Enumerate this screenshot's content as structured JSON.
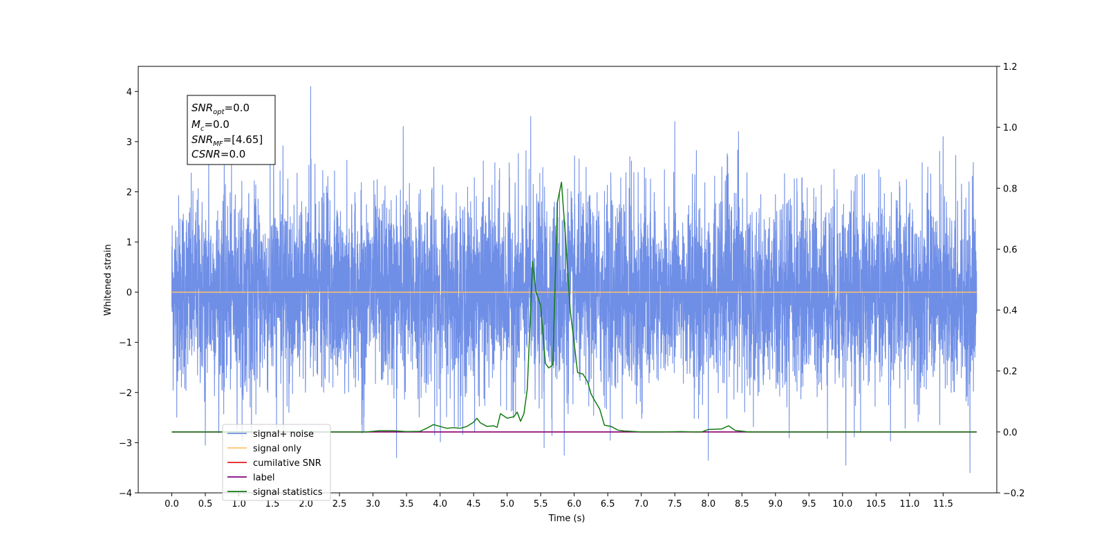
{
  "chart_data": {
    "type": "line",
    "xlabel": "Time (s)",
    "ylabel": "Whitened strain",
    "xlim": [
      -0.5,
      12.3
    ],
    "ylim": [
      -4,
      4.5
    ],
    "y2lim": [
      -0.2,
      1.2
    ],
    "x_ticks": [
      "0.0",
      "0.5",
      "1.0",
      "1.5",
      "2.0",
      "2.5",
      "3.0",
      "3.5",
      "4.0",
      "4.5",
      "5.0",
      "5.5",
      "6.0",
      "6.5",
      "7.0",
      "7.5",
      "8.0",
      "8.5",
      "9.0",
      "9.5",
      "10.0",
      "10.5",
      "11.0",
      "11.5"
    ],
    "y_ticks": [
      "−4",
      "−3",
      "−2",
      "−1",
      "0",
      "1",
      "2",
      "3",
      "4"
    ],
    "y2_ticks": [
      "−0.2",
      "0.0",
      "0.2",
      "0.4",
      "0.6",
      "0.8",
      "1.0",
      "1.2"
    ],
    "grid": false,
    "legend_position": "lower-left",
    "annotation": {
      "lines": [
        {
          "base": "SNR",
          "sub": "opt",
          "value": "=0.0"
        },
        {
          "base": "M",
          "sub": "c",
          "value": "=0.0"
        },
        {
          "base": "SNR",
          "sub": "MF",
          "value": "=[4.65]"
        },
        {
          "base": "CSNR",
          "sub": "",
          "value": "=0.0"
        }
      ]
    },
    "series": [
      {
        "name": "signal+ noise",
        "color": "#6f8ee6",
        "axis": "left",
        "style": "noise",
        "x_range": [
          0.0,
          12.0
        ],
        "mean": 0.0,
        "std": 0.95,
        "samples": 6000,
        "peaks": [
          [
            0.55,
            2.6
          ],
          [
            2.07,
            4.1
          ],
          [
            3.45,
            3.3
          ],
          [
            5.35,
            3.5
          ],
          [
            5.85,
            3.65
          ],
          [
            7.5,
            3.4
          ],
          [
            8.45,
            3.2
          ],
          [
            11.5,
            3.1
          ],
          [
            3.35,
            -3.3
          ],
          [
            5.55,
            -3.1
          ],
          [
            5.85,
            -3.25
          ],
          [
            8.0,
            -3.35
          ],
          [
            10.05,
            -3.45
          ],
          [
            11.9,
            -3.6
          ],
          [
            0.5,
            -3.05
          ]
        ]
      },
      {
        "name": "signal only",
        "color": "#ffc36b",
        "axis": "left",
        "x": [
          0.0,
          12.0
        ],
        "y": [
          0.0,
          0.0
        ]
      },
      {
        "name": "cumilative SNR",
        "color": "#e31a1c",
        "axis": "right",
        "x": [
          0.0,
          12.0
        ],
        "y": [
          0.0,
          0.0
        ]
      },
      {
        "name": "label",
        "color": "#800080",
        "axis": "right",
        "x": [
          0.0,
          12.0
        ],
        "y": [
          0.0,
          0.0
        ]
      },
      {
        "name": "signal statistics",
        "color": "#117a11",
        "axis": "right",
        "x": [
          0.0,
          2.9,
          3.1,
          3.3,
          3.5,
          3.7,
          3.8,
          3.9,
          4.0,
          4.1,
          4.2,
          4.3,
          4.4,
          4.5,
          4.55,
          4.6,
          4.7,
          4.8,
          4.85,
          4.9,
          5.0,
          5.1,
          5.15,
          5.2,
          5.25,
          5.3,
          5.38,
          5.43,
          5.5,
          5.57,
          5.62,
          5.68,
          5.75,
          5.81,
          5.87,
          5.94,
          6.0,
          6.05,
          6.13,
          6.2,
          6.25,
          6.3,
          6.38,
          6.45,
          6.55,
          6.65,
          6.75,
          6.85,
          7.0,
          7.3,
          7.6,
          7.8,
          7.9,
          8.0,
          8.2,
          8.3,
          8.4,
          8.6,
          8.8,
          12.0
        ],
        "y": [
          0.0,
          0.0,
          0.004,
          0.004,
          0.001,
          0.002,
          0.012,
          0.024,
          0.018,
          0.012,
          0.014,
          0.012,
          0.018,
          0.032,
          0.045,
          0.03,
          0.018,
          0.02,
          0.015,
          0.06,
          0.045,
          0.05,
          0.065,
          0.035,
          0.06,
          0.14,
          0.56,
          0.46,
          0.415,
          0.225,
          0.21,
          0.22,
          0.755,
          0.82,
          0.64,
          0.4,
          0.29,
          0.195,
          0.19,
          0.165,
          0.125,
          0.105,
          0.075,
          0.022,
          0.018,
          0.006,
          0.003,
          0.002,
          0.0,
          0.0,
          0.001,
          0.0,
          0.0,
          0.008,
          0.01,
          0.02,
          0.005,
          0.0,
          0.0,
          0.0
        ]
      }
    ]
  }
}
